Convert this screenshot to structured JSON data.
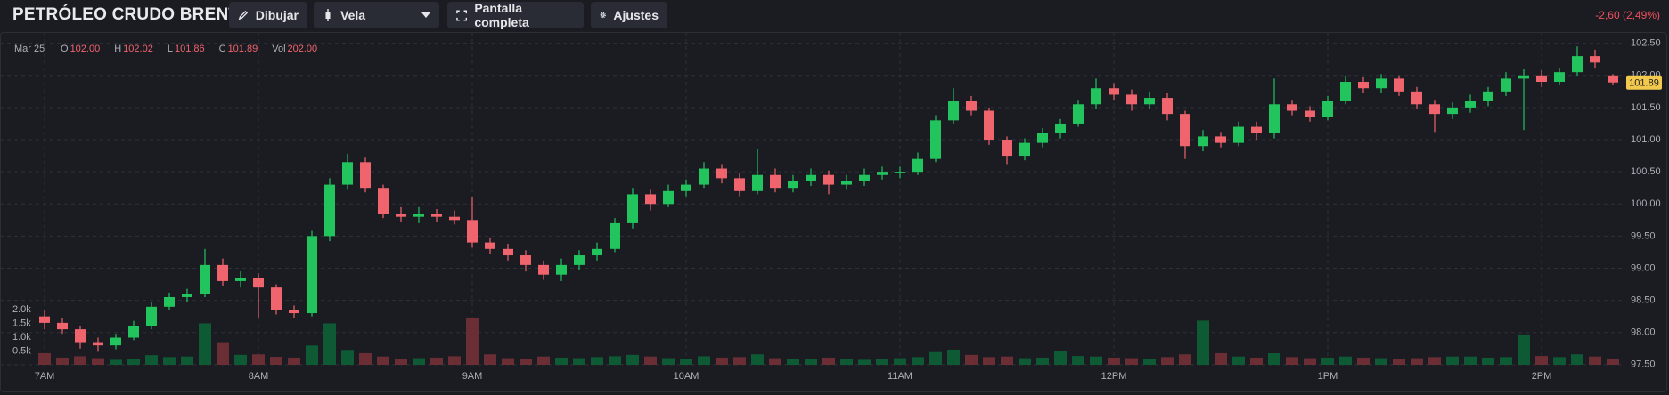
{
  "header": {
    "title": "PETRÓLEO CRUDO BRENT",
    "buttons": [
      "Dibujar",
      "Vela",
      "Pantalla completa",
      "Ajustes"
    ],
    "change": "-2,60 (2,49%)"
  },
  "chart_data": {
    "type": "candlestick",
    "legend": {
      "date": "Mar 25",
      "items": [
        {
          "key": "O",
          "value": "102.00"
        },
        {
          "key": "H",
          "value": "102.02"
        },
        {
          "key": "L",
          "value": "101.86"
        },
        {
          "key": "C",
          "value": "101.89"
        },
        {
          "key": "Vol",
          "value": "202.00"
        }
      ]
    },
    "open": [
      98.25,
      98.15,
      98.05,
      97.85,
      97.8,
      97.92,
      98.1,
      98.4,
      98.55,
      98.6,
      99.05,
      98.8,
      98.85,
      98.7,
      98.35,
      98.3,
      99.5,
      100.3,
      100.65,
      100.25,
      99.85,
      99.8,
      99.85,
      99.8,
      99.75,
      99.4,
      99.3,
      99.2,
      99.05,
      98.9,
      99.05,
      99.2,
      99.3,
      99.7,
      100.15,
      100.0,
      100.2,
      100.3,
      100.55,
      100.4,
      100.2,
      100.45,
      100.25,
      100.35,
      100.45,
      100.3,
      100.35,
      100.45,
      100.5,
      100.5,
      100.7,
      101.3,
      101.6,
      101.45,
      101.0,
      100.75,
      100.95,
      101.1,
      101.25,
      101.55,
      101.8,
      101.7,
      101.55,
      101.65,
      101.4,
      100.9,
      101.05,
      100.95,
      101.2,
      101.1,
      101.55,
      101.45,
      101.35,
      101.6,
      101.9,
      101.8,
      101.95,
      101.75,
      101.55,
      101.4,
      101.5,
      101.6,
      101.75,
      101.95,
      102.0,
      101.9,
      102.05,
      102.3,
      102.0
    ],
    "high": [
      98.35,
      98.22,
      98.1,
      97.92,
      97.98,
      98.18,
      98.48,
      98.62,
      98.68,
      99.3,
      99.15,
      98.95,
      98.92,
      98.75,
      98.42,
      99.58,
      100.4,
      100.78,
      100.72,
      100.3,
      99.95,
      99.95,
      99.92,
      99.9,
      100.1,
      99.48,
      99.38,
      99.28,
      99.12,
      99.15,
      99.28,
      99.4,
      99.78,
      100.25,
      100.22,
      100.3,
      100.38,
      100.65,
      100.62,
      100.48,
      100.85,
      100.55,
      100.45,
      100.55,
      100.52,
      100.45,
      100.55,
      100.58,
      100.58,
      100.8,
      101.38,
      101.8,
      101.68,
      101.5,
      101.05,
      101.02,
      101.18,
      101.32,
      101.62,
      101.95,
      101.88,
      101.78,
      101.75,
      101.72,
      101.45,
      101.15,
      101.12,
      101.28,
      101.28,
      101.95,
      101.62,
      101.52,
      101.68,
      102.0,
      101.98,
      102.02,
      102.0,
      101.82,
      101.62,
      101.58,
      101.7,
      101.82,
      102.05,
      102.1,
      102.08,
      102.12,
      102.45,
      102.4,
      102.02
    ],
    "low": [
      98.05,
      97.98,
      97.75,
      97.7,
      97.74,
      97.88,
      98.05,
      98.35,
      98.48,
      98.55,
      98.72,
      98.7,
      98.22,
      98.28,
      98.22,
      98.25,
      99.42,
      100.22,
      100.18,
      99.78,
      99.72,
      99.7,
      99.72,
      99.68,
      99.32,
      99.22,
      99.12,
      98.95,
      98.82,
      98.8,
      98.98,
      99.12,
      99.25,
      99.62,
      99.9,
      99.95,
      100.12,
      100.25,
      100.32,
      100.12,
      100.15,
      100.18,
      100.18,
      100.28,
      100.15,
      100.22,
      100.28,
      100.38,
      100.4,
      100.45,
      100.65,
      101.25,
      101.38,
      100.92,
      100.62,
      100.68,
      100.88,
      101.02,
      101.2,
      101.48,
      101.62,
      101.45,
      101.48,
      101.3,
      100.7,
      100.82,
      100.88,
      100.9,
      101.0,
      101.02,
      101.38,
      101.28,
      101.3,
      101.55,
      101.72,
      101.72,
      101.68,
      101.48,
      101.12,
      101.32,
      101.42,
      101.52,
      101.68,
      101.15,
      101.82,
      101.85,
      102.0,
      102.12,
      101.86
    ],
    "close": [
      98.15,
      98.05,
      97.85,
      97.8,
      97.92,
      98.1,
      98.4,
      98.55,
      98.6,
      99.05,
      98.8,
      98.85,
      98.7,
      98.35,
      98.3,
      99.5,
      100.3,
      100.65,
      100.25,
      99.85,
      99.8,
      99.85,
      99.8,
      99.75,
      99.4,
      99.3,
      99.2,
      99.05,
      98.9,
      99.05,
      99.2,
      99.3,
      99.7,
      100.15,
      100.0,
      100.2,
      100.3,
      100.55,
      100.4,
      100.2,
      100.45,
      100.25,
      100.35,
      100.45,
      100.3,
      100.35,
      100.45,
      100.5,
      100.5,
      100.7,
      101.3,
      101.6,
      101.45,
      101.0,
      100.75,
      100.95,
      101.1,
      101.25,
      101.55,
      101.8,
      101.7,
      101.55,
      101.65,
      101.4,
      100.9,
      101.05,
      100.95,
      101.2,
      101.1,
      101.55,
      101.45,
      101.35,
      101.6,
      101.9,
      101.8,
      101.95,
      101.75,
      101.55,
      101.4,
      101.5,
      101.6,
      101.75,
      101.95,
      102.0,
      101.9,
      102.05,
      102.3,
      102.2,
      101.89
    ],
    "volume": [
      420,
      260,
      310,
      240,
      180,
      210,
      350,
      280,
      300,
      1500,
      820,
      360,
      380,
      290,
      260,
      700,
      1500,
      540,
      420,
      300,
      220,
      240,
      260,
      310,
      1700,
      380,
      240,
      220,
      300,
      260,
      240,
      280,
      310,
      360,
      300,
      240,
      220,
      310,
      260,
      280,
      380,
      240,
      200,
      220,
      260,
      200,
      180,
      220,
      240,
      280,
      460,
      550,
      360,
      280,
      300,
      240,
      260,
      500,
      320,
      300,
      260,
      240,
      220,
      280,
      380,
      1600,
      420,
      300,
      260,
      420,
      280,
      240,
      260,
      300,
      260,
      240,
      220,
      240,
      280,
      300,
      300,
      260,
      280,
      1100,
      320,
      280,
      380,
      300,
      202
    ],
    "up_color": "#22c45e",
    "down_color": "#f0646e",
    "volume_up_color": "#0d5a34",
    "volume_down_color": "#6a2e34",
    "last_price": 101.89,
    "last_price_color": "#f2c94c",
    "xlim": [
      -2.5,
      88.6
    ],
    "xticks": [
      {
        "value": 0,
        "label": "7AM"
      },
      {
        "value": 12,
        "label": "8AM"
      },
      {
        "value": 24,
        "label": "9AM"
      },
      {
        "value": 36,
        "label": "10AM"
      },
      {
        "value": 48,
        "label": "11AM"
      },
      {
        "value": 60,
        "label": "12PM"
      },
      {
        "value": 72,
        "label": "1PM"
      },
      {
        "value": 84,
        "label": "2PM"
      }
    ],
    "ylim": [
      97.47,
      102.62
    ],
    "yticks": [
      {
        "value": 97.5,
        "label": "97.50"
      },
      {
        "value": 98,
        "label": "98.00"
      },
      {
        "value": 98.5,
        "label": "98.50"
      },
      {
        "value": 99,
        "label": "99.00"
      },
      {
        "value": 99.5,
        "label": "99.50"
      },
      {
        "value": 100,
        "label": "100.00"
      },
      {
        "value": 100.5,
        "label": "100.50"
      },
      {
        "value": 101,
        "label": "101.00"
      },
      {
        "value": 101.5,
        "label": "101.50"
      },
      {
        "value": 102,
        "label": "102.00"
      },
      {
        "value": 102.5,
        "label": "102.50"
      }
    ],
    "volume_ylim": [
      0,
      2000
    ],
    "volume_ticks": [
      {
        "value": 500,
        "label": "0.5k"
      },
      {
        "value": 1000,
        "label": "1.0k"
      },
      {
        "value": 1500,
        "label": "1.5k"
      },
      {
        "value": 2000,
        "label": "2.0k"
      }
    ],
    "grid": true
  }
}
